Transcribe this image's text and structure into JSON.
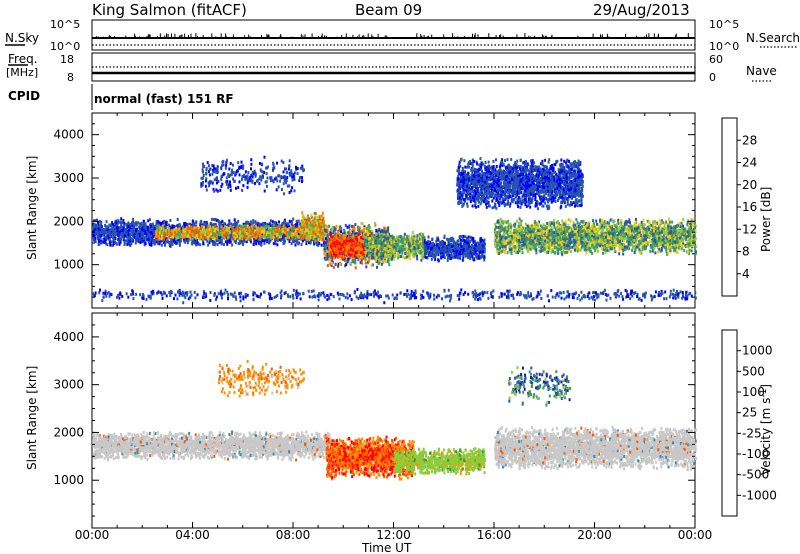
{
  "header": {
    "station": "King Salmon (fitACF)",
    "beam": "Beam 09",
    "date": "29/Aug/2013"
  },
  "strip_panels": {
    "nsky_label": "N.Sky",
    "nsky_ticks": [
      "10^5",
      "10^0"
    ],
    "nsearch_label": "N.Search",
    "nsearch_ticks": [
      "10^5",
      "10^0"
    ],
    "freq_label_1": "Freq.",
    "freq_label_2": "[MHz]",
    "freq_ticks": [
      "18",
      "8"
    ],
    "nave_label": "Nave",
    "nave_ticks": [
      "60",
      "0"
    ],
    "cpid_label": "CPID",
    "cpid_text": "normal (fast) 151 RF"
  },
  "colors": {
    "velocity_scale": [
      "#ff0000",
      "#ff5a00",
      "#ff9000",
      "#c8c8c8",
      "#c8c8c8",
      "#8ccd3c",
      "#3c9b3c",
      "#3c8caa",
      "#2850c8",
      "#1e1eb4"
    ],
    "power_scale": [
      "#0000ff",
      "#2850b4",
      "#285aa0",
      "#3c8c78",
      "#3caa5a",
      "#9bc83c",
      "#ffc800",
      "#ff8c00",
      "#ff5000",
      "#ff0000"
    ]
  },
  "chart_data": [
    {
      "type": "heatmap",
      "name": "power",
      "x": [
        "00:00",
        "04:00",
        "08:00",
        "12:00",
        "16:00",
        "20:00",
        "00:00"
      ],
      "xlim_hours": [
        0,
        24
      ],
      "ylabel": "Slant Range [km]",
      "yticks": [
        "4000",
        "3000",
        "2000",
        "1000"
      ],
      "ylim": [
        0,
        4500
      ],
      "colorbar": {
        "label": "Power [dB]",
        "ticks": [
          "28",
          "24",
          "20",
          "16",
          "12",
          "8",
          "4"
        ],
        "range": [
          0,
          30
        ]
      },
      "regions": [
        {
          "t": [
            0,
            9.2
          ],
          "range_km": [
            1450,
            2100
          ],
          "level": "low",
          "note": "main band"
        },
        {
          "t": [
            2.5,
            9.2
          ],
          "range_km": [
            1600,
            1950
          ],
          "level": "high"
        },
        {
          "t": [
            8.3,
            9.2
          ],
          "range_km": [
            1550,
            2250
          ],
          "level": "high"
        },
        {
          "t": [
            9.2,
            11.8
          ],
          "range_km": [
            950,
            2000
          ],
          "level": "mixed"
        },
        {
          "t": [
            9.4,
            10.8
          ],
          "range_km": [
            1150,
            1750
          ],
          "level": "very_high"
        },
        {
          "t": [
            10.8,
            13.2
          ],
          "range_km": [
            1100,
            1800
          ],
          "level": "medium"
        },
        {
          "t": [
            13.2,
            15.6
          ],
          "range_km": [
            1100,
            1700
          ],
          "level": "low"
        },
        {
          "t": [
            16.0,
            24
          ],
          "range_km": [
            1250,
            2100
          ],
          "level": "medium"
        },
        {
          "t": [
            4.3,
            8.4
          ],
          "range_km": [
            2600,
            3600
          ],
          "level": "low",
          "note": "far-range scatter"
        },
        {
          "t": [
            14.5,
            19.5
          ],
          "range_km": [
            2300,
            3500
          ],
          "level": "low"
        },
        {
          "t": [
            0,
            24
          ],
          "range_km": [
            150,
            500
          ],
          "level": "low",
          "note": "near-range clutter"
        }
      ]
    },
    {
      "type": "heatmap",
      "name": "velocity",
      "x": [
        "00:00",
        "04:00",
        "08:00",
        "12:00",
        "16:00",
        "20:00",
        "00:00"
      ],
      "xlim_hours": [
        0,
        24
      ],
      "xlabel": "Time UT",
      "ylabel": "Slant Range [km]",
      "yticks": [
        "4000",
        "3000",
        "2000",
        "1000"
      ],
      "ylim": [
        0,
        4500
      ],
      "colorbar": {
        "label": "Velocity [m s^-1]",
        "ticks": [
          "1000",
          "500",
          "100",
          "25",
          "-25",
          "-100",
          "-500",
          "-1000"
        ]
      },
      "regions": [
        {
          "t": [
            0,
            9.5
          ],
          "range_km": [
            1450,
            2050
          ],
          "sign": "ground"
        },
        {
          "t": [
            16.0,
            24
          ],
          "range_km": [
            1250,
            2150
          ],
          "sign": "ground"
        },
        {
          "t": [
            9.3,
            12.8
          ],
          "range_km": [
            1050,
            1950
          ],
          "sign": "away_fast"
        },
        {
          "t": [
            12.0,
            15.6
          ],
          "range_km": [
            1150,
            1700
          ],
          "sign": "toward_slow"
        },
        {
          "t": [
            5.0,
            8.4
          ],
          "range_km": [
            2700,
            3600
          ],
          "sign": "away_slow"
        },
        {
          "t": [
            16.5,
            19.0
          ],
          "range_km": [
            2500,
            3500
          ],
          "sign": "toward_mixed"
        }
      ]
    }
  ],
  "axes": {
    "xlabel": "Time UT"
  }
}
